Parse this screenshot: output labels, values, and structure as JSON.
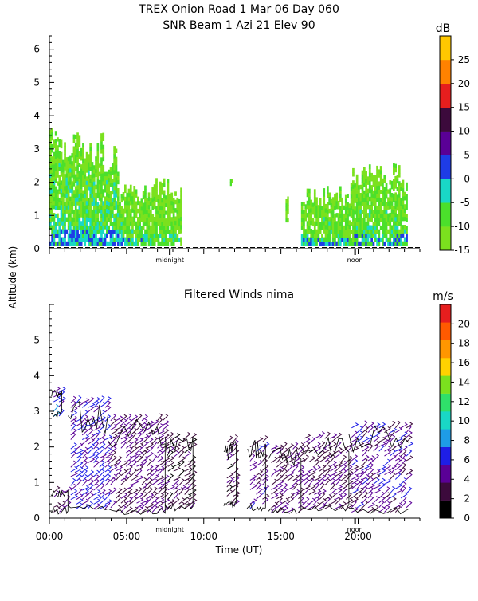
{
  "chart_data": [
    {
      "type": "heatmap",
      "title": "TREX Onion Road   1 Mar 06 Day 060",
      "subtitle": "SNR Beam 1 Azi  21 Elev 90",
      "ylabel": "Altitude (km)",
      "ylim": [
        0,
        6.4
      ],
      "yticks": [
        "0",
        "1",
        "2",
        "3",
        "4",
        "5",
        "6"
      ],
      "xlim": [
        0,
        24
      ],
      "x_markers": [
        {
          "label": "midnight",
          "x": 7.8
        },
        {
          "label": "noon",
          "x": 19.8
        }
      ],
      "colorbar": {
        "unit": "dB",
        "ticks": [
          "-15",
          "-10",
          "-5",
          "0",
          "5",
          "10",
          "15",
          "20",
          "25"
        ],
        "range": [
          -15,
          30
        ],
        "colors": [
          "#7be11e",
          "#4be02b",
          "#19d8c6",
          "#1e3ce6",
          "#5a0096",
          "#3c0a3c",
          "#e61e1e",
          "#ff8200",
          "#ffc800"
        ]
      },
      "regions": [
        {
          "x0": 0.0,
          "x1": 2.0,
          "y0": 0.1,
          "y1": 3.7,
          "intensity": "high"
        },
        {
          "x0": 2.0,
          "x1": 4.5,
          "y0": 0.1,
          "y1": 3.5,
          "intensity": "high"
        },
        {
          "x0": 4.5,
          "x1": 6.5,
          "y0": 0.1,
          "y1": 2.1,
          "intensity": "medium"
        },
        {
          "x0": 6.5,
          "x1": 8.6,
          "y0": 0.1,
          "y1": 2.2,
          "intensity": "low"
        },
        {
          "x0": 11.7,
          "x1": 11.9,
          "y0": 1.9,
          "y1": 2.2,
          "intensity": "low"
        },
        {
          "x0": 15.3,
          "x1": 15.5,
          "y0": 0.8,
          "y1": 1.8,
          "intensity": "low"
        },
        {
          "x0": 16.3,
          "x1": 19.5,
          "y0": 0.1,
          "y1": 1.9,
          "intensity": "medium"
        },
        {
          "x0": 19.5,
          "x1": 23.2,
          "y0": 0.1,
          "y1": 2.6,
          "intensity": "medium"
        }
      ]
    },
    {
      "type": "scatter",
      "title": "Filtered Winds nima",
      "ylabel": "Altitude (km)",
      "xlabel": "Time (UT)",
      "ylim": [
        0,
        6
      ],
      "yticks": [
        "0",
        "1",
        "2",
        "3",
        "4",
        "5"
      ],
      "xlim": [
        0,
        24
      ],
      "xticks": [
        "00:00",
        "05:00",
        "10:00",
        "15:00",
        "20:00"
      ],
      "x_markers": [
        {
          "label": "midnight",
          "x": 7.8
        },
        {
          "label": "noon",
          "x": 19.8
        }
      ],
      "colorbar": {
        "unit": "m/s",
        "ticks": [
          "0",
          "2",
          "4",
          "6",
          "8",
          "10",
          "12",
          "14",
          "16",
          "18",
          "20"
        ],
        "range": [
          0,
          22
        ],
        "colors": [
          "#000000",
          "#3c0a3c",
          "#5a0096",
          "#1e1ee6",
          "#1e9ce6",
          "#19d8c6",
          "#2fe06a",
          "#7be11e",
          "#ffd200",
          "#ff9600",
          "#ff5a00",
          "#e61e1e"
        ]
      },
      "wind_regions": [
        {
          "x0": 0.1,
          "x1": 0.8,
          "y0": 2.8,
          "y1": 3.6,
          "speed": 7
        },
        {
          "x0": 0.1,
          "x1": 1.2,
          "y0": 0.1,
          "y1": 0.8,
          "speed": 4
        },
        {
          "x0": 1.2,
          "x1": 3.8,
          "y0": 0.2,
          "y1": 3.3,
          "speed": 6
        },
        {
          "x0": 3.8,
          "x1": 7.5,
          "y0": 0.1,
          "y1": 2.8,
          "speed": 4
        },
        {
          "x0": 7.5,
          "x1": 9.3,
          "y0": 0.2,
          "y1": 2.3,
          "speed": 3
        },
        {
          "x0": 11.3,
          "x1": 12.1,
          "y0": 0.3,
          "y1": 2.2,
          "speed": 3
        },
        {
          "x0": 12.8,
          "x1": 14.0,
          "y0": 0.2,
          "y1": 2.2,
          "speed": 5
        },
        {
          "x0": 14.2,
          "x1": 16.3,
          "y0": 0.1,
          "y1": 2.0,
          "speed": 4
        },
        {
          "x0": 16.3,
          "x1": 19.4,
          "y0": 0.2,
          "y1": 2.3,
          "speed": 4
        },
        {
          "x0": 19.4,
          "x1": 23.3,
          "y0": 0.1,
          "y1": 2.6,
          "speed": 5
        }
      ]
    }
  ]
}
